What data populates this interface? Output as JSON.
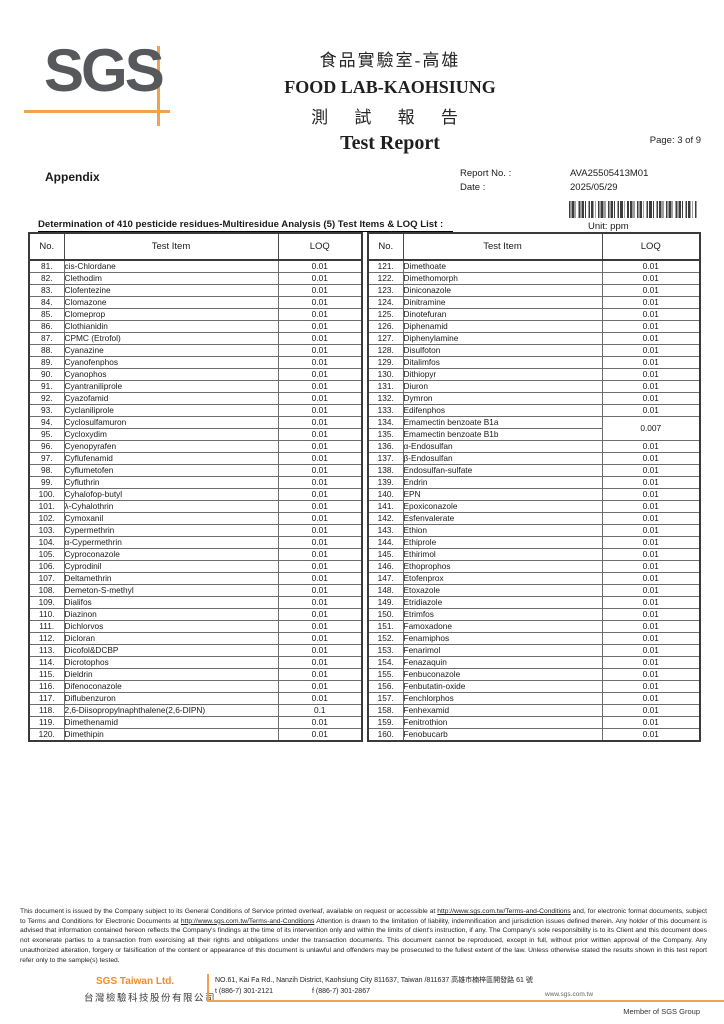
{
  "header": {
    "logo_text": "SGS",
    "title_zh": "食品實驗室-高雄",
    "title_en": "FOOD LAB-KAOHSIUNG",
    "report_zh": "測 試 報 告",
    "report_en": "Test Report",
    "page_label": "Page: 3 of 9"
  },
  "meta": {
    "appendix_label": "Appendix",
    "report_no_label": "Report No. :",
    "report_no": "AVA25505413M01",
    "date_label": "Date :",
    "date": "2025/05/29"
  },
  "table": {
    "title": "Determination of 410 pesticide residues-Multiresidue Analysis (5) Test Items & LOQ List :",
    "unit": "Unit: ppm",
    "columns": {
      "no": "No.",
      "item": "Test Item",
      "loq": "LOQ"
    },
    "left_rows": [
      {
        "no": "81.",
        "item": "cis-Chlordane",
        "loq": "0.01"
      },
      {
        "no": "82.",
        "item": "Clethodim",
        "loq": "0.01"
      },
      {
        "no": "83.",
        "item": "Clofentezine",
        "loq": "0.01"
      },
      {
        "no": "84.",
        "item": "Clomazone",
        "loq": "0.01"
      },
      {
        "no": "85.",
        "item": "Clomeprop",
        "loq": "0.01"
      },
      {
        "no": "86.",
        "item": "Clothianidin",
        "loq": "0.01"
      },
      {
        "no": "87.",
        "item": "CPMC (Etrofol)",
        "loq": "0.01"
      },
      {
        "no": "88.",
        "item": "Cyanazine",
        "loq": "0.01"
      },
      {
        "no": "89.",
        "item": "Cyanofenphos",
        "loq": "0.01"
      },
      {
        "no": "90.",
        "item": "Cyanophos",
        "loq": "0.01"
      },
      {
        "no": "91.",
        "item": "Cyantraniliprole",
        "loq": "0.01"
      },
      {
        "no": "92.",
        "item": "Cyazofamid",
        "loq": "0.01"
      },
      {
        "no": "93.",
        "item": "Cyclaniliprole",
        "loq": "0.01"
      },
      {
        "no": "94.",
        "item": "Cyclosulfamuron",
        "loq": "0.01"
      },
      {
        "no": "95.",
        "item": "Cycloxydim",
        "loq": "0.01"
      },
      {
        "no": "96.",
        "item": "Cyenopyrafen",
        "loq": "0.01"
      },
      {
        "no": "97.",
        "item": "Cyflufenamid",
        "loq": "0.01"
      },
      {
        "no": "98.",
        "item": "Cyflumetofen",
        "loq": "0.01"
      },
      {
        "no": "99.",
        "item": "Cyfluthrin",
        "loq": "0.01"
      },
      {
        "no": "100.",
        "item": "Cyhalofop-butyl",
        "loq": "0.01"
      },
      {
        "no": "101.",
        "item": "λ-Cyhalothrin",
        "loq": "0.01"
      },
      {
        "no": "102.",
        "item": "Cymoxanil",
        "loq": "0.01"
      },
      {
        "no": "103.",
        "item": "Cypermethrin",
        "loq": "0.01"
      },
      {
        "no": "104.",
        "item": "α-Cypermethrin",
        "loq": "0.01"
      },
      {
        "no": "105.",
        "item": "Cyproconazole",
        "loq": "0.01"
      },
      {
        "no": "106.",
        "item": "Cyprodinil",
        "loq": "0.01"
      },
      {
        "no": "107.",
        "item": "Deltamethrin",
        "loq": "0.01"
      },
      {
        "no": "108.",
        "item": "Demeton-S-methyl",
        "loq": "0.01"
      },
      {
        "no": "109.",
        "item": "Dialifos",
        "loq": "0.01"
      },
      {
        "no": "110.",
        "item": "Diazinon",
        "loq": "0.01"
      },
      {
        "no": "111.",
        "item": "Dichlorvos",
        "loq": "0.01"
      },
      {
        "no": "112.",
        "item": "Dicloran",
        "loq": "0.01"
      },
      {
        "no": "113.",
        "item": "Dicofol&DCBP",
        "loq": "0.01"
      },
      {
        "no": "114.",
        "item": "Dicrotophos",
        "loq": "0.01"
      },
      {
        "no": "115.",
        "item": "Dieldrin",
        "loq": "0.01"
      },
      {
        "no": "116.",
        "item": "Difenoconazole",
        "loq": "0.01"
      },
      {
        "no": "117.",
        "item": "Diflubenzuron",
        "loq": "0.01"
      },
      {
        "no": "118.",
        "item": "2,6-Diisopropylnaphthalene(2,6-DIPN)",
        "loq": "0.1"
      },
      {
        "no": "119.",
        "item": "Dimethenamid",
        "loq": "0.01"
      },
      {
        "no": "120.",
        "item": "Dimethipin",
        "loq": "0.01"
      }
    ],
    "right_rows": [
      {
        "no": "121.",
        "item": "Dimethoate",
        "loq": "0.01"
      },
      {
        "no": "122.",
        "item": "Dimethomorph",
        "loq": "0.01"
      },
      {
        "no": "123.",
        "item": "Diniconazole",
        "loq": "0.01"
      },
      {
        "no": "124.",
        "item": "Dinitramine",
        "loq": "0.01"
      },
      {
        "no": "125.",
        "item": "Dinotefuran",
        "loq": "0.01"
      },
      {
        "no": "126.",
        "item": "Diphenamid",
        "loq": "0.01"
      },
      {
        "no": "127.",
        "item": "Diphenylamine",
        "loq": "0.01"
      },
      {
        "no": "128.",
        "item": "Disulfoton",
        "loq": "0.01"
      },
      {
        "no": "129.",
        "item": "Ditalimfos",
        "loq": "0.01"
      },
      {
        "no": "130.",
        "item": "Dithiopyr",
        "loq": "0.01"
      },
      {
        "no": "131.",
        "item": "Diuron",
        "loq": "0.01"
      },
      {
        "no": "132.",
        "item": "Dymron",
        "loq": "0.01"
      },
      {
        "no": "133.",
        "item": "Edifenphos",
        "loq": "0.01"
      },
      {
        "no": "134.",
        "item": "Emamectin benzoate B1a",
        "loq": "0.007",
        "loq_rowspan": 2
      },
      {
        "no": "135.",
        "item": "Emamectin benzoate B1b",
        "loq": null
      },
      {
        "no": "136.",
        "item": "α-Endosulfan",
        "loq": "0.01"
      },
      {
        "no": "137.",
        "item": "β-Endosulfan",
        "loq": "0.01"
      },
      {
        "no": "138.",
        "item": "Endosulfan-sulfate",
        "loq": "0.01"
      },
      {
        "no": "139.",
        "item": "Endrin",
        "loq": "0.01"
      },
      {
        "no": "140.",
        "item": "EPN",
        "loq": "0.01"
      },
      {
        "no": "141.",
        "item": "Epoxiconazole",
        "loq": "0.01"
      },
      {
        "no": "142.",
        "item": "Esfenvalerate",
        "loq": "0.01"
      },
      {
        "no": "143.",
        "item": "Ethion",
        "loq": "0.01"
      },
      {
        "no": "144.",
        "item": "Ethiprole",
        "loq": "0.01"
      },
      {
        "no": "145.",
        "item": "Ethirimol",
        "loq": "0.01"
      },
      {
        "no": "146.",
        "item": "Ethoprophos",
        "loq": "0.01"
      },
      {
        "no": "147.",
        "item": "Etofenprox",
        "loq": "0.01"
      },
      {
        "no": "148.",
        "item": "Etoxazole",
        "loq": "0.01"
      },
      {
        "no": "149.",
        "item": "Etridiazole",
        "loq": "0.01"
      },
      {
        "no": "150.",
        "item": "Etrimfos",
        "loq": "0.01"
      },
      {
        "no": "151.",
        "item": "Famoxadone",
        "loq": "0.01"
      },
      {
        "no": "152.",
        "item": "Fenamiphos",
        "loq": "0.01"
      },
      {
        "no": "153.",
        "item": "Fenarimol",
        "loq": "0.01"
      },
      {
        "no": "154.",
        "item": "Fenazaquin",
        "loq": "0.01"
      },
      {
        "no": "155.",
        "item": "Fenbuconazole",
        "loq": "0.01"
      },
      {
        "no": "156.",
        "item": "Fenbutatin-oxide",
        "loq": "0.01"
      },
      {
        "no": "157.",
        "item": "Fenchlorphos",
        "loq": "0.01"
      },
      {
        "no": "158.",
        "item": "Fenhexamid",
        "loq": "0.01"
      },
      {
        "no": "159.",
        "item": "Fenitrothion",
        "loq": "0.01"
      },
      {
        "no": "160.",
        "item": "Fenobucarb",
        "loq": "0.01"
      }
    ]
  },
  "footer": {
    "disclaimer": {
      "d1": "This document is issued by the Company subject to its General Conditions of Service printed overleaf, available on request or accessible at ",
      "link1": "http://www.sgs.com.tw/Terms-and-Conditions",
      "d2": " and, for electronic format documents, subject to Terms and Conditions for Electronic Documents at ",
      "link2": "http://www.sgs.com.tw/Terms-and-Conditions",
      "d3": " Attention is drawn to the limitation of liability, indemnification and jurisdiction issues defined therein. Any holder of this document is advised that information contained hereon reflects the Company's findings at the time of its intervention only and within the limits of client's instruction, if any. The Company's sole responsibility is to its Client and this document does not exonerate parties to a transaction from exercising all their rights and obligations under the transaction documents. This document cannot be reproduced, except in full, without prior written approval of the Company. Any unauthorized alteration, forgery or falsification of the content or appearance of this document is unlawful and offenders may be prosecuted to the fullest extent of the law. Unless otherwise stated the results shown in this test report refer only to the sample(s) tested."
    },
    "company": {
      "name_en": "SGS Taiwan Ltd.",
      "name_zh": "台灣檢驗科技股份有限公司",
      "address": "NO.61, Kai Fa Rd., Nanzih District, Kaohsiung City 811637, Taiwan /811637 高雄市楠梓區開發路 61 號",
      "tel": "t (886-7) 301-2121",
      "fax": "f (886-7) 301-2867",
      "website": "www.sgs.com.tw",
      "member": "Member of SGS Group"
    }
  }
}
